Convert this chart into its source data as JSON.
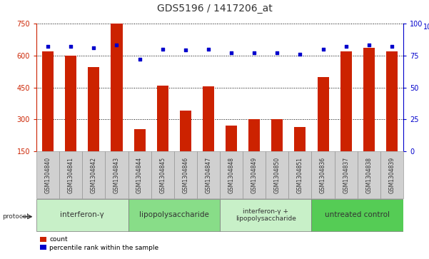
{
  "title": "GDS5196 / 1417206_at",
  "samples": [
    "GSM1304840",
    "GSM1304841",
    "GSM1304842",
    "GSM1304843",
    "GSM1304844",
    "GSM1304845",
    "GSM1304846",
    "GSM1304847",
    "GSM1304848",
    "GSM1304849",
    "GSM1304850",
    "GSM1304851",
    "GSM1304836",
    "GSM1304837",
    "GSM1304838",
    "GSM1304839"
  ],
  "counts": [
    620,
    600,
    545,
    750,
    255,
    460,
    340,
    455,
    270,
    300,
    300,
    265,
    500,
    620,
    635,
    620
  ],
  "percentiles": [
    82,
    82,
    81,
    83,
    72,
    80,
    79,
    80,
    77,
    77,
    77,
    76,
    80,
    82,
    83,
    82
  ],
  "groups": [
    {
      "label": "interferon-γ",
      "start": 0,
      "end": 4,
      "color": "#c8f0c8"
    },
    {
      "label": "lipopolysaccharide",
      "start": 4,
      "end": 8,
      "color": "#88dd88"
    },
    {
      "label": "interferon-γ +\nlipopolysaccharide",
      "start": 8,
      "end": 12,
      "color": "#c8f0c8"
    },
    {
      "label": "untreated control",
      "start": 12,
      "end": 16,
      "color": "#55cc55"
    }
  ],
  "ylim_left": [
    150,
    750
  ],
  "ylim_right": [
    0,
    100
  ],
  "yticks_left": [
    150,
    300,
    450,
    600,
    750
  ],
  "yticks_right": [
    0,
    25,
    50,
    75,
    100
  ],
  "bar_color": "#cc2200",
  "dot_color": "#0000cc",
  "grid_color": "#000000",
  "title_fontsize": 10,
  "tick_fontsize": 7,
  "xticklabel_fontsize": 5.5,
  "group_fontsize": 7.5,
  "group_fontsize2": 6.5,
  "protocol_label": "protocol"
}
